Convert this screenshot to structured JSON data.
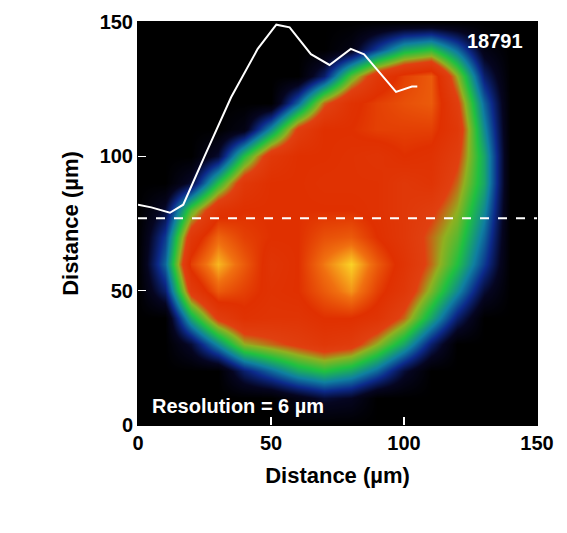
{
  "chart_data": {
    "type": "heatmap",
    "xlabel": "Distance (µm)",
    "ylabel": "Distance (µm)",
    "xlim": [
      0,
      150
    ],
    "ylim": [
      0,
      150
    ],
    "xticks": [
      0,
      50,
      100,
      150
    ],
    "yticks": [
      0,
      50,
      100,
      150
    ],
    "zlim": [
      0,
      100
    ],
    "annotations": [
      "18791",
      "Resolution = 6 µm"
    ],
    "x": [
      0,
      10,
      20,
      30,
      40,
      50,
      60,
      70,
      80,
      90,
      100,
      110,
      120,
      130,
      140,
      150
    ],
    "y": [
      0,
      10,
      20,
      30,
      40,
      50,
      60,
      70,
      80,
      90,
      100,
      110,
      120,
      130,
      140,
      150
    ],
    "z": [
      [
        0,
        0,
        0,
        0,
        0,
        0,
        0,
        0,
        0,
        0,
        0,
        0,
        0,
        0,
        0,
        0
      ],
      [
        0,
        0,
        0,
        0,
        0,
        0,
        5,
        10,
        8,
        0,
        0,
        0,
        0,
        0,
        0,
        0
      ],
      [
        0,
        0,
        0,
        0,
        15,
        25,
        35,
        40,
        35,
        25,
        10,
        0,
        0,
        0,
        0,
        0
      ],
      [
        0,
        0,
        10,
        30,
        50,
        55,
        60,
        65,
        62,
        50,
        35,
        15,
        0,
        0,
        0,
        0
      ],
      [
        0,
        0,
        35,
        60,
        70,
        68,
        68,
        72,
        72,
        68,
        55,
        35,
        15,
        0,
        0,
        0
      ],
      [
        0,
        15,
        62,
        80,
        75,
        70,
        72,
        80,
        88,
        75,
        65,
        48,
        30,
        10,
        0,
        0
      ],
      [
        0,
        25,
        75,
        92,
        80,
        68,
        72,
        85,
        95,
        80,
        68,
        55,
        40,
        20,
        0,
        0
      ],
      [
        0,
        20,
        65,
        82,
        75,
        72,
        72,
        78,
        80,
        72,
        65,
        55,
        45,
        25,
        0,
        0
      ],
      [
        0,
        10,
        45,
        68,
        72,
        72,
        72,
        72,
        72,
        70,
        65,
        60,
        50,
        30,
        0,
        0
      ],
      [
        0,
        0,
        10,
        40,
        65,
        72,
        72,
        70,
        70,
        70,
        65,
        68,
        55,
        35,
        0,
        0
      ],
      [
        0,
        0,
        0,
        10,
        40,
        65,
        72,
        72,
        70,
        68,
        72,
        70,
        60,
        35,
        0,
        0
      ],
      [
        0,
        0,
        0,
        0,
        5,
        30,
        60,
        72,
        72,
        75,
        75,
        75,
        65,
        30,
        0,
        0
      ],
      [
        0,
        0,
        0,
        0,
        0,
        0,
        25,
        55,
        70,
        75,
        78,
        80,
        60,
        25,
        0,
        0
      ],
      [
        0,
        0,
        0,
        0,
        0,
        0,
        0,
        15,
        45,
        65,
        75,
        80,
        50,
        15,
        0,
        0
      ],
      [
        0,
        0,
        0,
        0,
        0,
        0,
        0,
        0,
        5,
        20,
        35,
        40,
        25,
        5,
        0,
        0
      ],
      [
        0,
        0,
        0,
        0,
        0,
        0,
        0,
        0,
        0,
        0,
        0,
        0,
        0,
        0,
        0,
        0
      ]
    ],
    "series": [
      {
        "type": "line",
        "color": "#ffffff",
        "line_style": "solid",
        "x": [
          0,
          5,
          12,
          17,
          25,
          35,
          45,
          52,
          57,
          65,
          72,
          80,
          85,
          92,
          97,
          103,
          105
        ],
        "values": [
          82,
          81,
          79,
          82,
          100,
          122,
          140,
          149,
          148,
          138,
          134,
          140,
          138,
          130,
          124,
          126,
          126
        ]
      },
      {
        "type": "line",
        "color": "#ffffff",
        "line_style": "dashed",
        "x": [
          0,
          150
        ],
        "values": [
          77,
          77
        ]
      }
    ]
  }
}
